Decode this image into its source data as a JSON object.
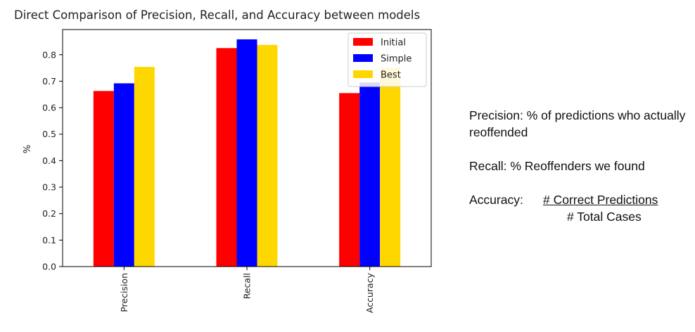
{
  "chart_data": {
    "type": "bar",
    "title": "Direct Comparison of Precision, Recall, and Accuracy between models",
    "xlabel": "",
    "ylabel": "%",
    "categories": [
      "Precision",
      "Recall",
      "Accuracy"
    ],
    "series": [
      {
        "name": "Initial",
        "color": "#ff0000",
        "values": [
          0.663,
          0.825,
          0.655
        ]
      },
      {
        "name": "Simple",
        "color": "#0000ff",
        "values": [
          0.692,
          0.858,
          0.695
        ]
      },
      {
        "name": "Best",
        "color": "#ffd700",
        "values": [
          0.754,
          0.837,
          0.75
        ]
      }
    ],
    "ylim": [
      0,
      0.895
    ],
    "yticks": [
      "0.0",
      "0.1",
      "0.2",
      "0.3",
      "0.4",
      "0.5",
      "0.6",
      "0.7",
      "0.8"
    ],
    "ytick_values": [
      0,
      0.1,
      0.2,
      0.3,
      0.4,
      0.5,
      0.6,
      0.7,
      0.8
    ],
    "legend_position": "top-right",
    "grid": false
  },
  "notes": {
    "precision": "Precision: % of predictions who actually reoffended",
    "recall": "Recall: % Reoffenders we found",
    "accuracy_label": "Accuracy:",
    "accuracy_numerator": "# Correct Predictions",
    "accuracy_denominator": "# Total Cases"
  }
}
